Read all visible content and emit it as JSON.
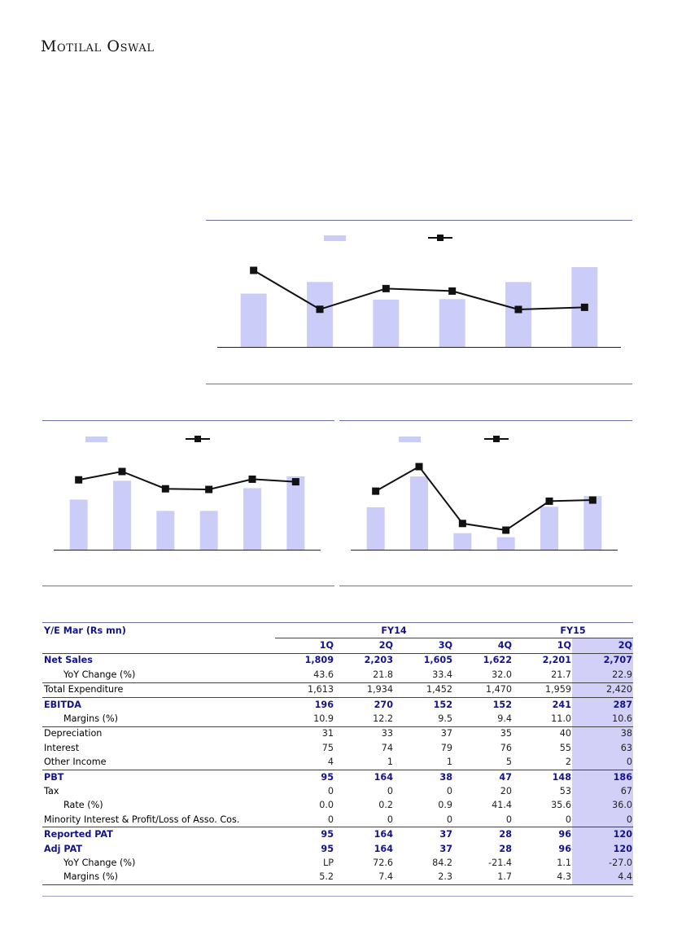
{
  "header": {
    "logo_text": "Motilal Oswal"
  },
  "charts": {
    "top": {
      "bar_color": "#ccccf8",
      "line_color": "#111111"
    },
    "left": {
      "bar_color": "#ccccf8",
      "line_color": "#111111"
    },
    "right": {
      "bar_color": "#ccccf8",
      "line_color": "#111111"
    }
  },
  "table": {
    "col_header": "Y/E Mar (Rs mn)",
    "fy_groups": [
      "FY14",
      "FY15"
    ],
    "quarters": [
      "1Q",
      "2Q",
      "3Q",
      "4Q",
      "1Q",
      "2Q"
    ],
    "rows": [
      {
        "label": "Net Sales",
        "style": "bold",
        "values": [
          "1,809",
          "2,203",
          "1,605",
          "1,622",
          "2,201",
          "2,707"
        ]
      },
      {
        "label": "YoY Change (%)",
        "style": "indent",
        "values": [
          "43.6",
          "21.8",
          "33.4",
          "32.0",
          "21.7",
          "22.9"
        ]
      },
      {
        "label": "Total Expenditure",
        "style": "ruled",
        "values": [
          "1,613",
          "1,934",
          "1,452",
          "1,470",
          "1,959",
          "2,420"
        ]
      },
      {
        "label": "EBITDA",
        "style": "bold ruled",
        "values": [
          "196",
          "270",
          "152",
          "152",
          "241",
          "287"
        ]
      },
      {
        "label": "Margins (%)",
        "style": "indent",
        "values": [
          "10.9",
          "12.2",
          "9.5",
          "9.4",
          "11.0",
          "10.6"
        ]
      },
      {
        "label": "Depreciation",
        "style": "ruled",
        "values": [
          "31",
          "33",
          "37",
          "35",
          "40",
          "38"
        ]
      },
      {
        "label": "Interest",
        "style": "",
        "values": [
          "75",
          "74",
          "79",
          "76",
          "55",
          "63"
        ]
      },
      {
        "label": "Other Income",
        "style": "",
        "values": [
          "4",
          "1",
          "1",
          "5",
          "2",
          "0"
        ]
      },
      {
        "label": "PBT",
        "style": "bold ruled",
        "values": [
          "95",
          "164",
          "38",
          "47",
          "148",
          "186"
        ]
      },
      {
        "label": "Tax",
        "style": "",
        "values": [
          "0",
          "0",
          "0",
          "20",
          "53",
          "67"
        ]
      },
      {
        "label": "Rate (%)",
        "style": "indent",
        "values": [
          "0.0",
          "0.2",
          "0.9",
          "41.4",
          "35.6",
          "36.0"
        ]
      },
      {
        "label": "Minority Interest & Profit/Loss of Asso. Cos.",
        "style": "",
        "values": [
          "0",
          "0",
          "0",
          "0",
          "0",
          "0"
        ]
      },
      {
        "label": "Reported PAT",
        "style": "bold ruled",
        "values": [
          "95",
          "164",
          "37",
          "28",
          "96",
          "120"
        ]
      },
      {
        "label": "Adj PAT",
        "style": "bold",
        "values": [
          "95",
          "164",
          "37",
          "28",
          "96",
          "120"
        ]
      },
      {
        "label": "YoY Change (%)",
        "style": "indent",
        "values": [
          "LP",
          "72.6",
          "84.2",
          "-21.4",
          "1.1",
          "-27.0"
        ]
      },
      {
        "label": "Margins (%)",
        "style": "indent last",
        "values": [
          "5.2",
          "7.4",
          "2.3",
          "1.7",
          "4.3",
          "4.4"
        ]
      }
    ]
  },
  "chart_data": [
    {
      "type": "bar",
      "title": "",
      "categories": [
        "",
        "",
        "",
        "",
        "",
        ""
      ],
      "series": [
        {
          "kind": "bar",
          "values": [
            1809,
            2203,
            1605,
            1622,
            2201,
            2707
          ]
        },
        {
          "kind": "line",
          "values": [
            43.6,
            21.8,
            33.4,
            32.0,
            21.7,
            22.9
          ]
        }
      ],
      "legend": "top-center",
      "grid": false
    },
    {
      "type": "bar",
      "title": "",
      "categories": [
        "",
        "",
        "",
        "",
        "",
        ""
      ],
      "series": [
        {
          "kind": "bar",
          "values": [
            196,
            270,
            152,
            152,
            241,
            287
          ]
        },
        {
          "kind": "line",
          "values": [
            10.9,
            12.2,
            9.5,
            9.4,
            11.0,
            10.6
          ]
        }
      ],
      "legend": "top-left",
      "grid": false
    },
    {
      "type": "bar",
      "title": "",
      "categories": [
        "",
        "",
        "",
        "",
        "",
        ""
      ],
      "series": [
        {
          "kind": "bar",
          "values": [
            95,
            164,
            37,
            28,
            96,
            120
          ]
        },
        {
          "kind": "line",
          "values": [
            5.2,
            7.4,
            2.3,
            1.7,
            4.3,
            4.4
          ]
        }
      ],
      "legend": "top-left",
      "grid": false
    }
  ]
}
